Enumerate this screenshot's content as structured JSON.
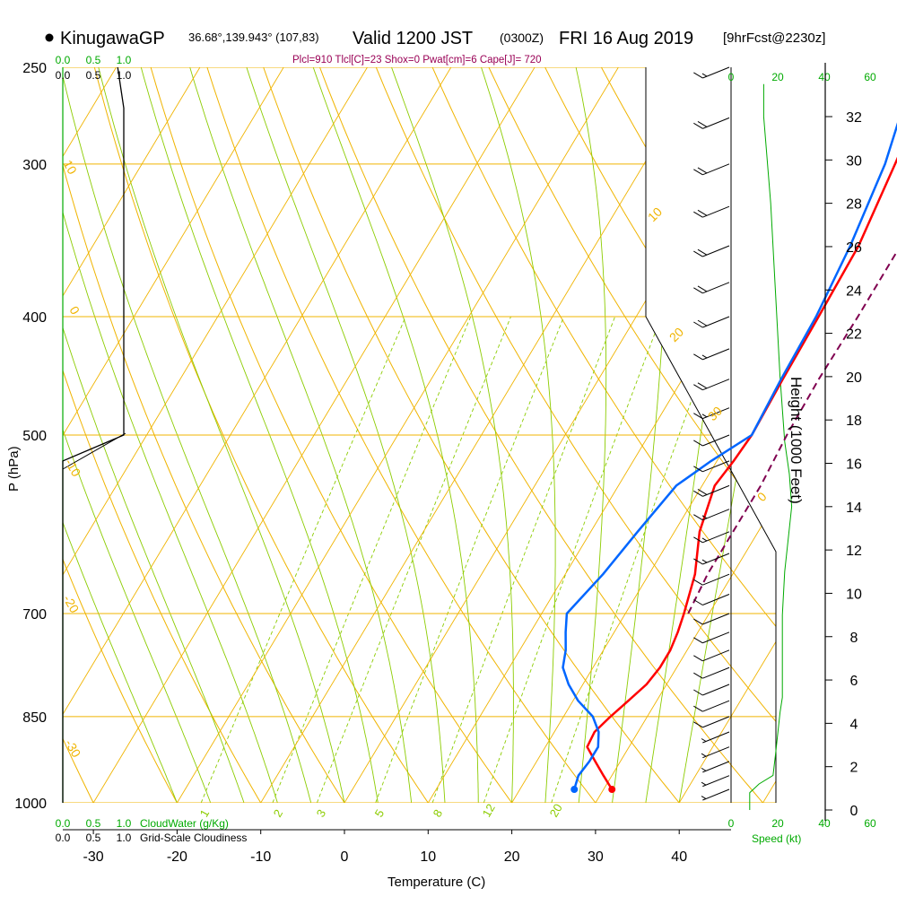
{
  "header": {
    "station": "KinugawaGP",
    "coords": "36.68°,139.943° (107,83)",
    "valid": "Valid 1200 JST",
    "zulu": "(0300Z)",
    "date": "FRI 16 Aug 2019",
    "forecast": "[9hrFcst@2230z]"
  },
  "params_line": "Plcl=910 Tlcl[C]=23 Shox=0 Pwat[cm]=6 Cape[J]= 720",
  "labels": {
    "cloudwater": "CloudWater (g/Kg)",
    "cloudiness": "Grid-Scale Cloudiness",
    "speed": "Speed (kt)",
    "height_axis": "Height (1000 Feet)",
    "pressure_axis": "P (hPa)",
    "temperature_axis": "Temperature (C)"
  },
  "colors": {
    "isobar": "#f0b400",
    "dry_adiabat": "#f0b400",
    "moist_adiabat": "#8ccc00",
    "mixing_ratio": "#8ccc00",
    "temperature": "#ff0000",
    "dewpoint": "#0066ff",
    "parcel": "#800050",
    "speed_profile": "#00aa00",
    "cloudwater": "#00aa00"
  },
  "chart_data": {
    "type": "line",
    "subtype": "skew-t",
    "xlabel": "Temperature (C)",
    "ylabel": "P (hPa)",
    "x_ticks": [
      -30,
      -20,
      -10,
      0,
      10,
      20,
      30,
      40
    ],
    "x_tick_labels": [
      "-30",
      "-20",
      "-10",
      "0",
      "10",
      "20",
      "30",
      "40"
    ],
    "y_ticks": [
      250,
      300,
      400,
      500,
      700,
      850,
      1000
    ],
    "y_tick_labels": [
      "250",
      "300",
      "400",
      "500",
      "700",
      "850",
      "1000"
    ],
    "pressure_range": [
      250,
      1000
    ],
    "height_ticks": [
      0,
      2,
      4,
      6,
      8,
      10,
      12,
      14,
      16,
      18,
      20,
      22,
      24,
      26,
      28,
      30,
      32
    ],
    "height_tick_labels": [
      "0",
      "2",
      "4",
      "6",
      "8",
      "10",
      "12",
      "14",
      "16",
      "18",
      "20",
      "22",
      "24",
      "26",
      "28",
      "30",
      "32"
    ],
    "cloud_ticks_top": [
      "0.0",
      "0.5",
      "1.0"
    ],
    "cloud_ticks_top2": [
      "0.0",
      "0.5",
      "1.0"
    ],
    "cloud_ticks_bottom": [
      "0.0",
      "0.5",
      "1.0"
    ],
    "cloud_ticks_bottom2": [
      "0.0",
      "0.5",
      "1.0"
    ],
    "speed_ticks": [
      "0",
      "20",
      "40",
      "60"
    ],
    "dry_adiabat_labels": [
      "10",
      "0",
      "-10",
      "-20",
      "-30",
      "10",
      "20",
      "30",
      "0"
    ],
    "mixing_ratio_labels": [
      "1",
      "2",
      "3",
      "5",
      "8",
      "12",
      "20"
    ],
    "series": [
      {
        "name": "Temperature",
        "p": [
          975,
          950,
          925,
          900,
          875,
          850,
          825,
          800,
          775,
          750,
          725,
          700,
          650,
          600,
          550,
          525,
          500,
          450,
          400,
          350,
          300,
          250
        ],
        "t": [
          31.0,
          29.0,
          27.0,
          25.0,
          24.8,
          25.6,
          26.6,
          27.6,
          28.0,
          28.0,
          27.6,
          27.0,
          25.5,
          23.0,
          21.5,
          22.0,
          22.3,
          22.0,
          21.8,
          21.5,
          20.0,
          18.0
        ]
      },
      {
        "name": "Dewpoint",
        "p": [
          975,
          950,
          925,
          900,
          875,
          850,
          825,
          800,
          775,
          750,
          725,
          700,
          650,
          600,
          550,
          525,
          500,
          450,
          400,
          350,
          300,
          250
        ],
        "t": [
          26.5,
          26.0,
          26.3,
          26.3,
          25.3,
          23.5,
          20.6,
          18.3,
          16.4,
          15.5,
          14.2,
          13.0,
          14.5,
          15.6,
          16.9,
          19.3,
          22.3,
          21.8,
          21.5,
          20.5,
          18.8,
          15.5
        ]
      },
      {
        "name": "Parcel",
        "p": [
          700,
          650,
          600,
          550,
          500,
          450,
          400,
          350,
          300,
          250
        ],
        "t": [
          27.5,
          27.0,
          27.0,
          27.0,
          26.5,
          26.3,
          26.5,
          26.5,
          25.0,
          22.5
        ]
      }
    ],
    "cloudiness_profile": {
      "p": [
        1000,
        525,
        500,
        400,
        300,
        270,
        250
      ],
      "fraction": [
        0.0,
        0.0,
        1.0,
        1.0,
        1.0,
        1.0,
        0.9
      ]
    },
    "wind_speed_profile": {
      "height_kft": [
        0,
        0.8,
        1.2,
        1.6,
        2.5,
        3.5,
        4.5,
        5.2,
        6.0,
        7.5,
        9.0,
        11.0,
        13.0,
        14.0,
        15.5,
        17.0,
        20.0,
        24.0,
        28.0,
        32.0,
        33.5
      ],
      "speed_kt": [
        8,
        8,
        12,
        18,
        19,
        20,
        21,
        22,
        22,
        22,
        22,
        23,
        25,
        26,
        25,
        23,
        21,
        19,
        17,
        14,
        14
      ]
    },
    "wind_barbs": {
      "p": [
        975,
        950,
        925,
        900,
        875,
        850,
        825,
        800,
        775,
        750,
        725,
        700,
        675,
        650,
        625,
        600,
        575,
        550,
        525,
        500,
        475,
        450,
        425,
        400,
        375,
        350,
        325,
        300,
        275,
        250
      ],
      "speed_kt": [
        5,
        5,
        5,
        5,
        5,
        10,
        10,
        10,
        10,
        10,
        10,
        10,
        10,
        10,
        15,
        15,
        15,
        20,
        10,
        10,
        15,
        20,
        15,
        20,
        20,
        20,
        20,
        20,
        20,
        15
      ]
    }
  }
}
